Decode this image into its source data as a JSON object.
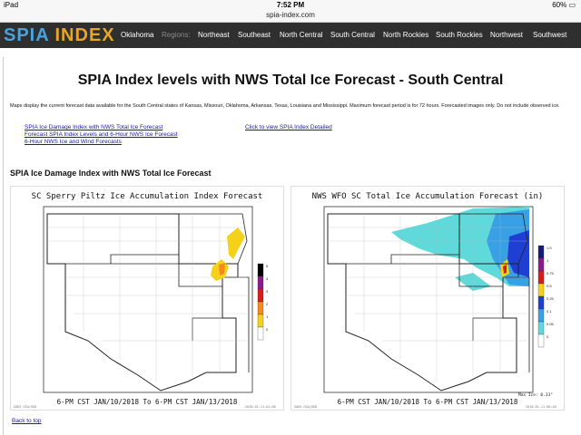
{
  "status": {
    "device": "iPad",
    "time": "7:52 PM",
    "battery": "60%"
  },
  "browser": {
    "url": "spia-index.com"
  },
  "nav": {
    "logo_part1": "SPIA",
    "logo_part2": "INDEX",
    "items": [
      {
        "label": "Oklahoma"
      },
      {
        "label": "Regions:"
      },
      {
        "label": "Northeast"
      },
      {
        "label": "Southeast"
      },
      {
        "label": "North Central"
      },
      {
        "label": "South Central"
      },
      {
        "label": "North Rockies"
      },
      {
        "label": "South Rockies"
      },
      {
        "label": "Northwest"
      },
      {
        "label": "Southwest"
      }
    ]
  },
  "page": {
    "title": "SPIA Index levels with NWS Total Ice Forecast - South Central",
    "description": "Maps display the current forecast data available for the South Central states of Kansas, Missouri, Oklahoma, Arkansas, Texas, Louisiana and Mississippi. Maximum forecast period is for 72 hours. Forecasted images only. Do not include observed ice.",
    "links": [
      "SPIA Ice Damage Index with NWS Total Ice Forecast",
      "Forecast SPIA Index Levels and 6-Hour NWS Ice Forecast",
      "6-Hour NWS Ice and Wind Forecasts"
    ],
    "detail_link": "Click to view SPIA Index Detailed",
    "section_title": "SPIA Ice Damage Index with NWS Total Ice Forecast",
    "back_link": "Back to top"
  },
  "maps": [
    {
      "title": "SC Sperry Piltz Ice Accumulation Index Forecast",
      "footer": "6-PM CST JAN/10/2018 To 6-PM CST JAN/13/2018",
      "legend": [
        "5",
        "4",
        "3",
        "2",
        "1",
        "0"
      ],
      "legend_colors": [
        "#000000",
        "#8b1a8b",
        "#d81b1b",
        "#f58a1f",
        "#f5d21a",
        "#ffffff"
      ],
      "credit_left": "GADS GSA/GED",
      "credit_right": "2018-01-11-01:00"
    },
    {
      "title": "NWS WFO SC Total Ice Accumulation Forecast (in)",
      "footer": "6-PM CST JAN/10/2018 To 6-PM CST JAN/13/2018",
      "max_ice": "Max Ice: 0.33\"",
      "legend": [
        "1.5",
        "1",
        "0.75",
        "0.5",
        "0.25",
        "0.1",
        "0.05",
        "0"
      ],
      "legend_colors": [
        "#1a1a7a",
        "#8b1a8b",
        "#d81b1b",
        "#f5d21a",
        "#1f3fd4",
        "#3aa0e6",
        "#5fd9d9",
        "#ffffff"
      ],
      "credit_left": "GADS GSA/GED",
      "credit_right": "2018-01-11-00:40"
    }
  ],
  "colors": {
    "nav_bg": "#2f2f2f",
    "link": "#1a1aa6",
    "logo_blue": "#4aa3df",
    "logo_orange": "#e7a628"
  }
}
